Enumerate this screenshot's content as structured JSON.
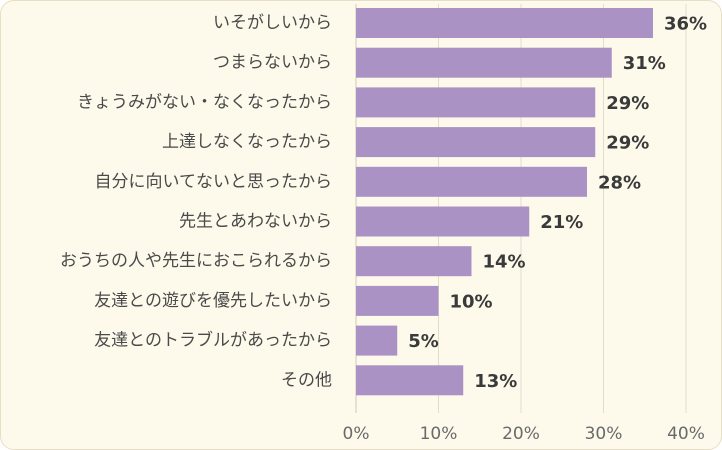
{
  "chart_data": {
    "type": "bar",
    "orientation": "horizontal",
    "categories": [
      "いそがしいから",
      "つまらないから",
      "きょうみがない・なくなったから",
      "上達しなくなったから",
      "自分に向いてないと思ったから",
      "先生とあわないから",
      "おうちの人や先生におこられるから",
      "友達との遊びを優先したいから",
      "友達とのトラブルがあったから",
      "その他"
    ],
    "values": [
      36,
      31,
      29,
      29,
      28,
      21,
      14,
      10,
      5,
      13
    ],
    "value_labels": [
      "36%",
      "31%",
      "29%",
      "29%",
      "28%",
      "21%",
      "14%",
      "10%",
      "5%",
      "13%"
    ],
    "x_ticks": [
      0,
      10,
      20,
      30,
      40
    ],
    "x_tick_labels": [
      "0%",
      "10%",
      "20%",
      "30%",
      "40%"
    ],
    "xlim": [
      0,
      40
    ],
    "grid": true,
    "legend": "none",
    "colors": {
      "bar": "#aa92c4",
      "background": "#fdfaec",
      "grid": "#e2dccb",
      "axis": "#cfc8b6",
      "category_text": "#4a4a4a",
      "value_text": "#3a3a3a",
      "tick_text": "#6a6a6a"
    }
  }
}
